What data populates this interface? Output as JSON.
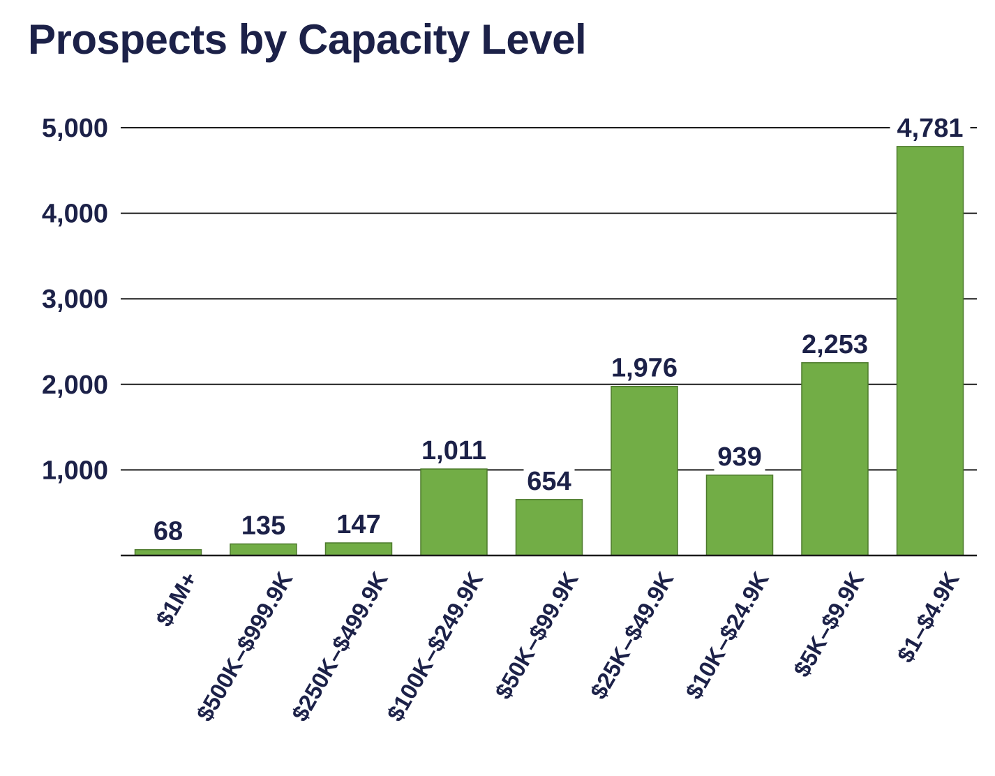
{
  "chart_data": {
    "type": "bar",
    "title": "Prospects by Capacity Level",
    "xlabel": "",
    "ylabel": "",
    "categories": [
      "$1M+",
      "$500K–$999.9K",
      "$250K–$499.9K",
      "$100K–$249.9K",
      "$50K–$99.9K",
      "$25K–$49.9K",
      "$10K–$24.9K",
      "$5K–$9.9K",
      "$1–$4.9K"
    ],
    "values": [
      68,
      135,
      147,
      1011,
      654,
      1976,
      939,
      2253,
      4781
    ],
    "value_labels": [
      "68",
      "135",
      "147",
      "1,011",
      "654",
      "1,976",
      "939",
      "2,253",
      "4,781"
    ],
    "ylim": [
      0,
      5000
    ],
    "yticks": [
      1000,
      2000,
      3000,
      4000,
      5000
    ],
    "ytick_labels": [
      "1,000",
      "2,000",
      "3,000",
      "4,000",
      "5,000"
    ],
    "grid": "horizontal",
    "legend": "none",
    "bar_color": "#72ad46",
    "bar_edge_color": "#4d7a2c",
    "text_color": "#1c2148",
    "grid_color": "#1a1a1a"
  }
}
